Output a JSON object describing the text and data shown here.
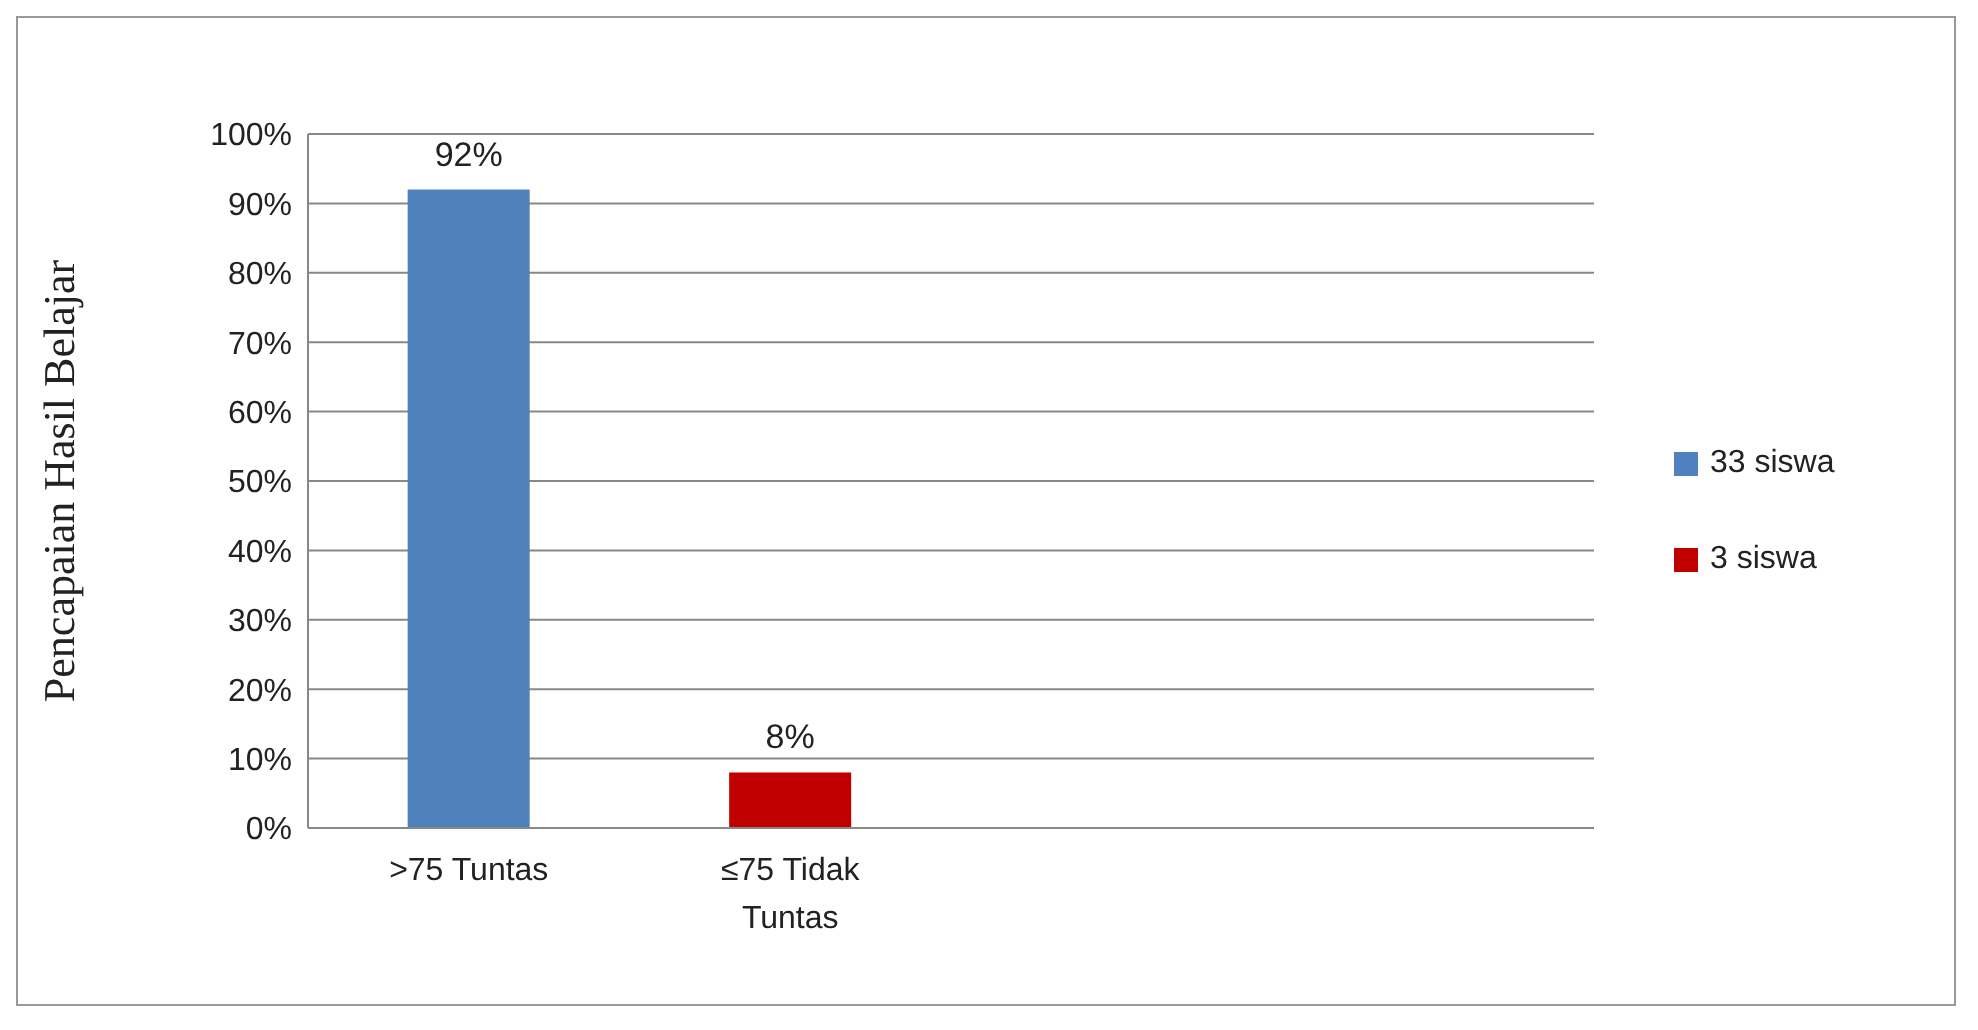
{
  "chart_data": {
    "type": "bar",
    "ylabel": "Pencapaian Hasil Belajar",
    "categories": [
      ">75 Tuntas",
      "≤75 Tidak Tuntas",
      null,
      null
    ],
    "stacked": true,
    "series": [
      {
        "name": "33 siswa",
        "color": "#4f81bd",
        "values": [
          92,
          null,
          null,
          null
        ],
        "value_labels": [
          "92%",
          null,
          null,
          null
        ]
      },
      {
        "name": "3 siswa",
        "color": "#c00000",
        "values": [
          null,
          8,
          null,
          null
        ],
        "value_labels": [
          null,
          "8%",
          null,
          null
        ]
      }
    ],
    "ylim": [
      0,
      100
    ],
    "yticks": [
      {
        "value": 0,
        "label": "0%"
      },
      {
        "value": 10,
        "label": "10%"
      },
      {
        "value": 20,
        "label": "20%"
      },
      {
        "value": 30,
        "label": "30%"
      },
      {
        "value": 40,
        "label": "40%"
      },
      {
        "value": 50,
        "label": "50%"
      },
      {
        "value": 60,
        "label": "60%"
      },
      {
        "value": 70,
        "label": "70%"
      },
      {
        "value": 80,
        "label": "80%"
      },
      {
        "value": 90,
        "label": "90%"
      },
      {
        "value": 100,
        "label": "100%"
      }
    ],
    "grid": "y",
    "legend": "right"
  }
}
